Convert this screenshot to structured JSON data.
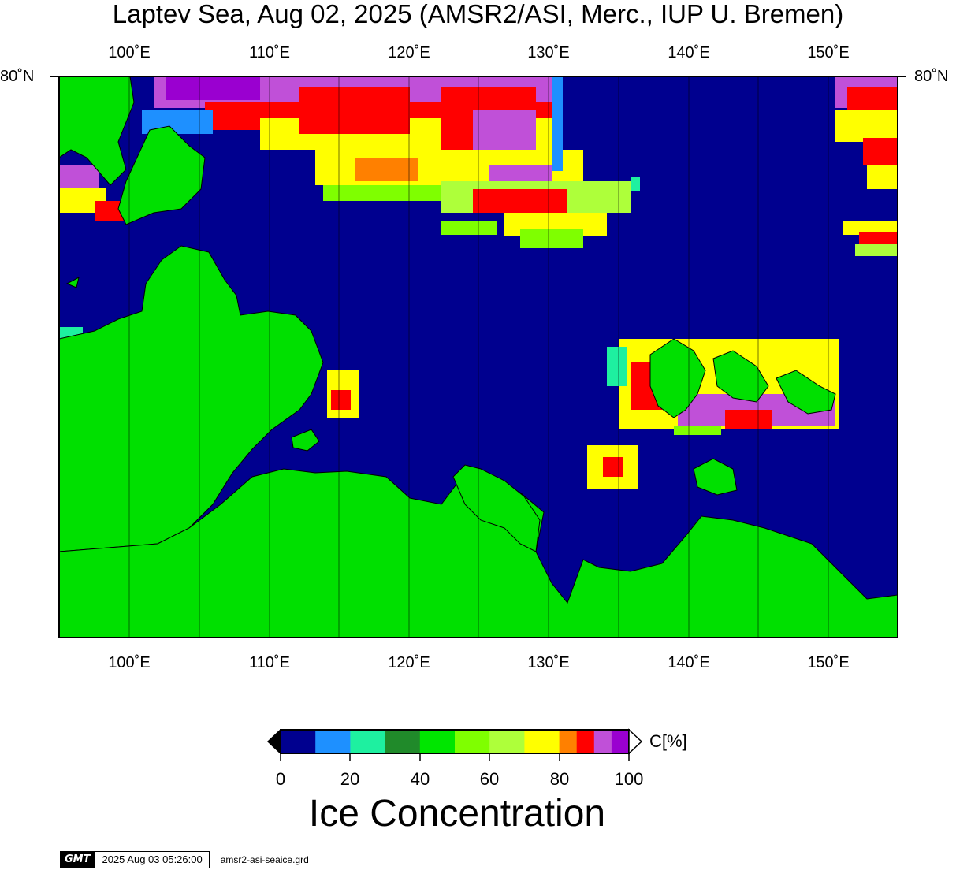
{
  "title": "Laptev Sea, Aug 02, 2025 (AMSR2/ASI, Merc., IUP U. Bremen)",
  "map": {
    "lon_labels": [
      "100˚E",
      "110˚E",
      "120˚E",
      "130˚E",
      "140˚E",
      "150˚E"
    ],
    "lat_label": "80˚N",
    "colors": {
      "ocean": "#00008f",
      "land": "#00e000",
      "border": "#000000"
    }
  },
  "colorbar": {
    "title": "Ice Concentration",
    "unit": "C[%]",
    "tick_labels": [
      "0",
      "20",
      "40",
      "60",
      "80",
      "100"
    ],
    "bins": [
      {
        "from": 0,
        "to": 10,
        "color": "#00008f"
      },
      {
        "from": 10,
        "to": 20,
        "color": "#1e90ff"
      },
      {
        "from": 20,
        "to": 30,
        "color": "#1ef0a0"
      },
      {
        "from": 30,
        "to": 40,
        "color": "#208a2a"
      },
      {
        "from": 40,
        "to": 50,
        "color": "#00e600"
      },
      {
        "from": 50,
        "to": 60,
        "color": "#7fff00"
      },
      {
        "from": 60,
        "to": 70,
        "color": "#aeff3a"
      },
      {
        "from": 70,
        "to": 80,
        "color": "#ffff00"
      },
      {
        "from": 80,
        "to": 85,
        "color": "#ff8000"
      },
      {
        "from": 85,
        "to": 90,
        "color": "#ff0000"
      },
      {
        "from": 90,
        "to": 95,
        "color": "#c050d8"
      },
      {
        "from": 95,
        "to": 100,
        "color": "#9a00d0"
      }
    ]
  },
  "footer": {
    "logo": "GMT",
    "timestamp": "2025 Aug 03 05:26:00",
    "grid_file": "amsr2-asi-seaice.grd"
  }
}
